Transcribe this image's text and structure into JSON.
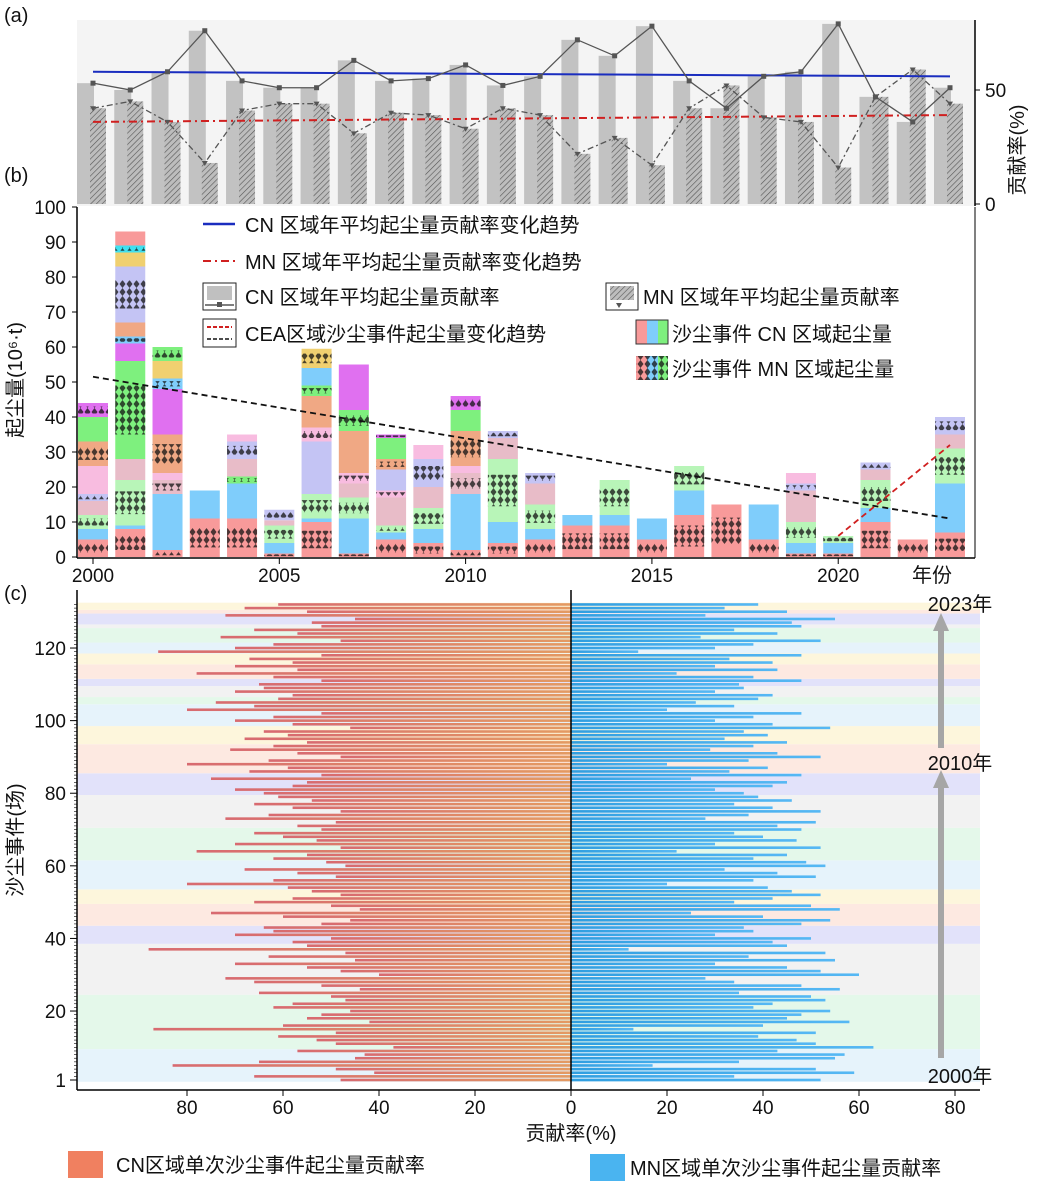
{
  "panel_labels": {
    "a": "(a)",
    "b": "(b)",
    "c": "(c)"
  },
  "chart_data": [
    {
      "id": "a",
      "type": "bar",
      "title": "",
      "x": [
        2000,
        2001,
        2002,
        2003,
        2004,
        2005,
        2006,
        2007,
        2008,
        2009,
        2010,
        2011,
        2012,
        2013,
        2014,
        2015,
        2016,
        2017,
        2018,
        2019,
        2020,
        2021,
        2022,
        2023
      ],
      "series": [
        {
          "name": "CN 区域年平均起尘量贡献率",
          "values": [
            53,
            50,
            58,
            76,
            54,
            51,
            51,
            63,
            54,
            55,
            61,
            52,
            56,
            72,
            65,
            78,
            54,
            42,
            56,
            58,
            79,
            47,
            36,
            51
          ]
        },
        {
          "name": "MN 区域年平均起尘量贡献率",
          "values": [
            42,
            45,
            36,
            18,
            41,
            44,
            44,
            31,
            40,
            39,
            33,
            42,
            39,
            22,
            29,
            17,
            42,
            52,
            38,
            36,
            16,
            47,
            59,
            44
          ]
        }
      ],
      "trends": {
        "cn": [
          58,
          56
        ],
        "mn": [
          36,
          39
        ]
      },
      "ylabel": "贡献率(%)",
      "ylim": [
        0,
        100
      ],
      "yticks": [
        "0",
        "50"
      ]
    },
    {
      "id": "b",
      "type": "bar",
      "stacked": true,
      "ylabel": "起尘量(10⁶·t)",
      "xlabel": "年份",
      "ylim": [
        0,
        100
      ],
      "yticks": [
        "0",
        "10",
        "20",
        "30",
        "40",
        "50",
        "60",
        "70",
        "80",
        "90",
        "100"
      ],
      "xticks": [
        "2000",
        "2005",
        "2010",
        "2015",
        "2020"
      ],
      "x": [
        2000,
        2001,
        2002,
        2003,
        2004,
        2005,
        2006,
        2007,
        2008,
        2009,
        2010,
        2011,
        2012,
        2013,
        2014,
        2015,
        2016,
        2017,
        2018,
        2019,
        2020,
        2021,
        2022,
        2023
      ],
      "totals": [
        44,
        93,
        60,
        19,
        35,
        13.5,
        59.5,
        55,
        35,
        32,
        46,
        36,
        24,
        12,
        22,
        11,
        26,
        15,
        15,
        24,
        6,
        27,
        5,
        40
      ],
      "palette": [
        "#f89a9a",
        "#7fcdfb",
        "#b8f5b8",
        "#e8bcc8",
        "#c4c4f4",
        "#f8bce0",
        "#f0a884",
        "#7ef07e",
        "#e070f0",
        "#f0d070",
        "#40e0f0"
      ],
      "segments": [
        [
          [
            5,
            0
          ],
          [
            3,
            1
          ],
          [
            4,
            2
          ],
          [
            4,
            3
          ],
          [
            2,
            4
          ],
          [
            8,
            5
          ],
          [
            7,
            6
          ],
          [
            7,
            7
          ],
          [
            4,
            8
          ]
        ],
        [
          [
            8,
            0
          ],
          [
            1,
            1
          ],
          [
            13,
            2
          ],
          [
            6,
            3
          ],
          [
            28,
            7
          ],
          [
            5,
            8
          ],
          [
            2,
            1
          ],
          [
            4,
            6
          ],
          [
            16,
            4
          ],
          [
            4,
            9
          ],
          [
            2,
            10
          ],
          [
            4,
            0
          ]
        ],
        [
          [
            2,
            0
          ],
          [
            16,
            1
          ],
          [
            4,
            3
          ],
          [
            2,
            5
          ],
          [
            11,
            6
          ],
          [
            13,
            8
          ],
          [
            3,
            1
          ],
          [
            5,
            9
          ],
          [
            4,
            7
          ]
        ],
        [
          [
            11,
            0
          ],
          [
            8,
            1
          ]
        ],
        [
          [
            11,
            0
          ],
          [
            10,
            1
          ],
          [
            2,
            7
          ],
          [
            5,
            3
          ],
          [
            5,
            4
          ],
          [
            2,
            5
          ]
        ],
        [
          [
            1,
            0
          ],
          [
            3,
            1
          ],
          [
            5,
            2
          ],
          [
            1.5,
            3
          ],
          [
            3,
            4
          ]
        ],
        [
          [
            10,
            0
          ],
          [
            1,
            1
          ],
          [
            7,
            2
          ],
          [
            15,
            4
          ],
          [
            4,
            5
          ],
          [
            9,
            6
          ],
          [
            3,
            7
          ],
          [
            5,
            1
          ],
          [
            5.5,
            9
          ]
        ],
        [
          [
            1,
            0
          ],
          [
            10,
            1
          ],
          [
            6,
            2
          ],
          [
            4,
            3
          ],
          [
            3,
            5
          ],
          [
            12,
            6
          ],
          [
            6,
            7
          ],
          [
            13,
            8
          ]
        ],
        [
          [
            5,
            0
          ],
          [
            2,
            1
          ],
          [
            2,
            2
          ],
          [
            8,
            3
          ],
          [
            2,
            5
          ],
          [
            6,
            4
          ],
          [
            3,
            6
          ],
          [
            6,
            7
          ],
          [
            1,
            8
          ]
        ],
        [
          [
            4,
            0
          ],
          [
            4,
            1
          ],
          [
            6,
            2
          ],
          [
            6,
            3
          ],
          [
            8,
            4
          ],
          [
            4,
            5
          ]
        ],
        [
          [
            2,
            0
          ],
          [
            16,
            1
          ],
          [
            6,
            3
          ],
          [
            2,
            5
          ],
          [
            10,
            6
          ],
          [
            6,
            7
          ],
          [
            4,
            8
          ]
        ],
        [
          [
            4,
            0
          ],
          [
            6,
            1
          ],
          [
            18,
            2
          ],
          [
            6,
            3
          ],
          [
            2,
            4
          ]
        ],
        [
          [
            5,
            0
          ],
          [
            3,
            1
          ],
          [
            7,
            2
          ],
          [
            6,
            3
          ],
          [
            3,
            4
          ]
        ],
        [
          [
            9,
            0
          ],
          [
            3,
            1
          ]
        ],
        [
          [
            9,
            0
          ],
          [
            3,
            1
          ],
          [
            10,
            2
          ]
        ],
        [
          [
            5,
            0
          ],
          [
            6,
            1
          ]
        ],
        [
          [
            12,
            0
          ],
          [
            7,
            1
          ],
          [
            7,
            2
          ]
        ],
        [
          [
            15,
            0
          ]
        ],
        [
          [
            5,
            0
          ],
          [
            10,
            1
          ]
        ],
        [
          [
            1,
            0
          ],
          [
            3,
            1
          ],
          [
            6,
            2
          ],
          [
            9,
            3
          ],
          [
            2,
            4
          ],
          [
            3,
            5
          ]
        ],
        [
          [
            1,
            0
          ],
          [
            3,
            1
          ],
          [
            2,
            2
          ]
        ],
        [
          [
            10,
            0
          ],
          [
            4,
            1
          ],
          [
            8,
            2
          ],
          [
            3,
            3
          ],
          [
            2,
            4
          ]
        ],
        [
          [
            5,
            0
          ]
        ],
        [
          [
            7,
            0
          ],
          [
            14,
            1
          ],
          [
            10,
            2
          ],
          [
            4,
            3
          ],
          [
            5,
            4
          ]
        ]
      ],
      "trend_cea": {
        "x": [
          2000,
          2023
        ],
        "y": [
          51.5,
          11
        ]
      },
      "trend_recent": {
        "x": [
          2020,
          2023
        ],
        "y": [
          6,
          32
        ]
      },
      "legend": [
        "CN 区域年平均起尘量贡献率变化趋势",
        "MN 区域年平均起尘量贡献率变化趋势",
        "CN 区域年平均起尘量贡献率",
        "MN 区域年平均起尘量贡献率",
        "CEA区域沙尘事件起尘量变化趋势",
        "沙尘事件 CN 区域起尘量",
        "沙尘事件 MN 区域起尘量"
      ]
    },
    {
      "id": "c",
      "type": "bar",
      "orientation": "horizontal-diverging",
      "ylabel": "沙尘事件(场)",
      "xlabel": "贡献率(%)",
      "xticks_left": [
        "80",
        "60",
        "40",
        "20"
      ],
      "xticks_right": [
        "0",
        "20",
        "40",
        "60",
        "80"
      ],
      "yticks": [
        "1",
        "20",
        "40",
        "60",
        "80",
        "100",
        "120"
      ],
      "year_labels": [
        "2000年",
        "2010年",
        "2023年"
      ],
      "year_event_counts": [
        9,
        15,
        14,
        5,
        6,
        4,
        8,
        9,
        9,
        6,
        8,
        5,
        6,
        2,
        3,
        2,
        4,
        3,
        3,
        4,
        1,
        3,
        1,
        2
      ],
      "band_colors": [
        "#e6f3fb",
        "#e4f8ea",
        "#f2f2f2",
        "#e2e2fa",
        "#fde9e1",
        "#fdf6dc"
      ],
      "cn_values": [
        48,
        66,
        41,
        49,
        83,
        65,
        45,
        43,
        57,
        37,
        49,
        53,
        61,
        49,
        87,
        60,
        42,
        55,
        52,
        46,
        62,
        58,
        47,
        50,
        65,
        44,
        52,
        66,
        72,
        40,
        48,
        55,
        70,
        45,
        63,
        47,
        88,
        55,
        58,
        50,
        70,
        62,
        64,
        52,
        46,
        60,
        75,
        44,
        50,
        66,
        58,
        48,
        54,
        59,
        80,
        62,
        49,
        57,
        68,
        47,
        51,
        62,
        55,
        78,
        48,
        70,
        53,
        60,
        66,
        52,
        57,
        49,
        72,
        63,
        48,
        58,
        66,
        54,
        61,
        64,
        70,
        58,
        55,
        75,
        52,
        67,
        59,
        80,
        63,
        48,
        57,
        71,
        62,
        55,
        68,
        59,
        64,
        46,
        58,
        70,
        62,
        52,
        80,
        66,
        74,
        61,
        58,
        70,
        64,
        65,
        52,
        62,
        78,
        57,
        70,
        58,
        67,
        52,
        86,
        70,
        62,
        48,
        73,
        57,
        66,
        52,
        54,
        45,
        72,
        55,
        68,
        61
      ],
      "legend": [
        "CN区域单次沙尘事件起尘量贡献率",
        "MN区域单次沙尘事件起尘量贡献率"
      ],
      "colors": {
        "cn": "#f08060",
        "mn": "#4ab4f0"
      }
    }
  ]
}
